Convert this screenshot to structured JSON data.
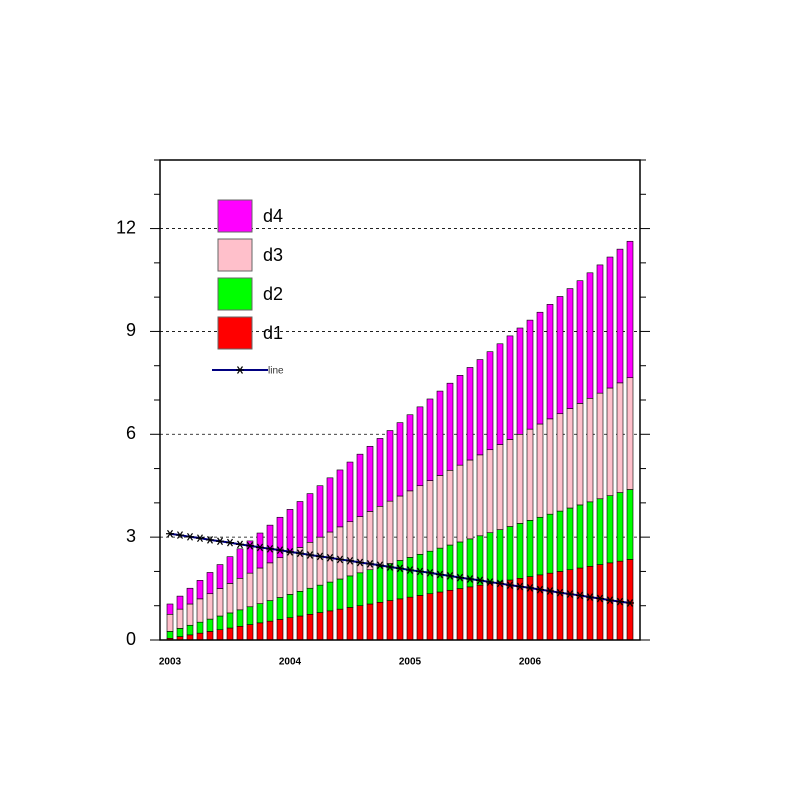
{
  "chart_data": {
    "type": "stacked-bar-line",
    "categories": [
      "2003",
      null,
      null,
      null,
      null,
      null,
      null,
      null,
      null,
      null,
      null,
      null,
      "2004",
      null,
      null,
      null,
      null,
      null,
      null,
      null,
      null,
      null,
      null,
      null,
      "2005",
      null,
      null,
      null,
      null,
      null,
      null,
      null,
      null,
      null,
      null,
      null,
      "2006",
      null,
      null,
      null,
      null,
      null,
      null,
      null,
      null,
      null,
      null
    ],
    "series": [
      {
        "name": "d1",
        "color": "#ff0000",
        "values": [
          0.05,
          0.1,
          0.15,
          0.2,
          0.25,
          0.3,
          0.35,
          0.4,
          0.45,
          0.5,
          0.55,
          0.6,
          0.65,
          0.7,
          0.75,
          0.8,
          0.85,
          0.9,
          0.95,
          1.0,
          1.05,
          1.1,
          1.15,
          1.2,
          1.25,
          1.3,
          1.35,
          1.4,
          1.45,
          1.5,
          1.55,
          1.6,
          1.65,
          1.7,
          1.75,
          1.8,
          1.85,
          1.9,
          1.95,
          2.0,
          2.05,
          2.1,
          2.15,
          2.2,
          2.25,
          2.3,
          2.35
        ]
      },
      {
        "name": "d2",
        "color": "#00ff00",
        "values": [
          0.2,
          0.24,
          0.28,
          0.32,
          0.36,
          0.4,
          0.44,
          0.48,
          0.52,
          0.56,
          0.6,
          0.64,
          0.68,
          0.72,
          0.76,
          0.8,
          0.84,
          0.88,
          0.92,
          0.96,
          1.0,
          1.04,
          1.08,
          1.12,
          1.16,
          1.2,
          1.24,
          1.28,
          1.32,
          1.36,
          1.4,
          1.44,
          1.48,
          1.52,
          1.56,
          1.6,
          1.64,
          1.68,
          1.72,
          1.76,
          1.8,
          1.84,
          1.88,
          1.92,
          1.96,
          2.0,
          2.04
        ]
      },
      {
        "name": "d3",
        "color": "#ffc0cb",
        "values": [
          0.5,
          0.56,
          0.62,
          0.68,
          0.74,
          0.8,
          0.86,
          0.92,
          0.98,
          1.04,
          1.1,
          1.16,
          1.22,
          1.28,
          1.34,
          1.4,
          1.46,
          1.52,
          1.58,
          1.64,
          1.7,
          1.76,
          1.82,
          1.88,
          1.94,
          2.0,
          2.06,
          2.12,
          2.18,
          2.24,
          2.3,
          2.36,
          2.42,
          2.48,
          2.54,
          2.6,
          2.66,
          2.72,
          2.78,
          2.84,
          2.9,
          2.96,
          3.02,
          3.08,
          3.14,
          3.2,
          3.26
        ]
      },
      {
        "name": "d4",
        "color": "#ff00ff",
        "values": [
          0.3,
          0.38,
          0.46,
          0.54,
          0.62,
          0.7,
          0.78,
          0.86,
          0.94,
          1.02,
          1.1,
          1.18,
          1.26,
          1.34,
          1.42,
          1.5,
          1.58,
          1.66,
          1.74,
          1.82,
          1.9,
          1.98,
          2.06,
          2.14,
          2.22,
          2.3,
          2.38,
          2.46,
          2.54,
          2.62,
          2.7,
          2.78,
          2.86,
          2.94,
          3.02,
          3.1,
          3.18,
          3.26,
          3.34,
          3.42,
          3.5,
          3.58,
          3.66,
          3.74,
          3.82,
          3.9,
          3.98
        ]
      },
      {
        "name": "line",
        "type": "line",
        "color": "#000080",
        "values": [
          3.1,
          3.06,
          3.01,
          2.97,
          2.92,
          2.88,
          2.84,
          2.79,
          2.75,
          2.7,
          2.66,
          2.62,
          2.57,
          2.53,
          2.48,
          2.44,
          2.4,
          2.35,
          2.31,
          2.26,
          2.22,
          2.18,
          2.13,
          2.09,
          2.04,
          2.0,
          1.96,
          1.91,
          1.87,
          1.82,
          1.78,
          1.74,
          1.69,
          1.65,
          1.6,
          1.56,
          1.52,
          1.47,
          1.43,
          1.38,
          1.34,
          1.3,
          1.25,
          1.21,
          1.16,
          1.12,
          1.08
        ]
      }
    ],
    "ylim": [
      0,
      14
    ],
    "yticks": [
      0,
      3,
      6,
      9,
      12
    ],
    "yminorticks": [
      1,
      2,
      4,
      5,
      7,
      8,
      10,
      11,
      13,
      14
    ],
    "grid": true,
    "legend": "upper-left"
  }
}
